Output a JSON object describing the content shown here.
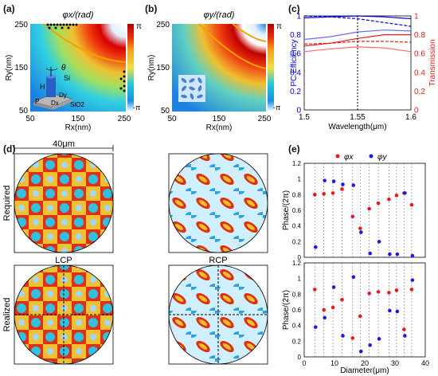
{
  "panels": {
    "a": "(a)",
    "b": "(b)",
    "c": "(c)",
    "d": "(d)",
    "e": "(e)"
  },
  "chart_data": [
    {
      "type": "heatmap",
      "panel": "(a)",
      "title": "φx/(rad)",
      "xlabel": "Rx(nm)",
      "ylabel": "Ry(nm)",
      "x_ticks": [
        "50",
        "150",
        "250"
      ],
      "y_ticks": [
        "50",
        "150",
        "250"
      ],
      "xlim": [
        50,
        250
      ],
      "ylim": [
        50,
        250
      ],
      "colorbar_ticks": [
        "π",
        "-π"
      ],
      "inset_labels": {
        "theta": "θ",
        "h": "H",
        "si": "Si",
        "dy": "Dy",
        "dx": "Dx",
        "p": "P",
        "sio2": "SiO2"
      }
    },
    {
      "type": "heatmap",
      "panel": "(b)",
      "title": "φy/(rad)",
      "xlabel": "Rx(nm)",
      "ylabel": "Ry(nm)",
      "x_ticks": [
        "50",
        "150",
        "250"
      ],
      "y_ticks": [
        "50",
        "150",
        "250"
      ],
      "xlim": [
        50,
        250
      ],
      "ylim": [
        50,
        250
      ],
      "colorbar_ticks": [
        "π",
        "-π"
      ]
    },
    {
      "type": "line",
      "panel": "(c)",
      "xlabel": "Wavelength(μm)",
      "ylabel_left": "PC Efficiency",
      "ylabel_right": "Transmission",
      "x_ticks": [
        "1.5",
        "1.55",
        "1.6"
      ],
      "y_ticks": [
        "0",
        "0.2",
        "0.4",
        "0.6",
        "0.8",
        "1"
      ],
      "xlim": [
        1.5,
        1.6
      ],
      "ylim": [
        0,
        1
      ],
      "x": [
        1.5,
        1.525,
        1.55,
        1.575,
        1.6
      ],
      "series": [
        {
          "axis": "left",
          "color": "#0000e6",
          "style": "solid",
          "values": [
            0.98,
            0.99,
            1.0,
            0.99,
            0.97
          ]
        },
        {
          "axis": "left",
          "color": "#0000e6",
          "style": "dashed",
          "values": [
            1.0,
            0.99,
            0.97,
            0.93,
            0.89
          ]
        },
        {
          "axis": "left",
          "color": "#6a6aff",
          "style": "solid",
          "values": [
            0.75,
            0.78,
            0.83,
            0.85,
            0.84
          ]
        },
        {
          "axis": "right",
          "color": "#e61b1b",
          "style": "solid",
          "values": [
            0.68,
            0.71,
            0.76,
            0.8,
            0.8
          ]
        },
        {
          "axis": "right",
          "color": "#e61b1b",
          "style": "dashed",
          "values": [
            0.7,
            0.71,
            0.73,
            0.73,
            0.72
          ]
        },
        {
          "axis": "right",
          "color": "#ff6a6a",
          "style": "solid",
          "values": [
            0.62,
            0.65,
            0.67,
            0.66,
            0.62
          ]
        }
      ],
      "vline": 1.55
    },
    {
      "type": "heatmap",
      "panel": "(d)",
      "scale_label": "40μm",
      "row_labels": [
        "Required",
        "Realized"
      ],
      "column_labels": [
        "LCP",
        "RCP"
      ]
    },
    {
      "type": "scatter",
      "panel": "(e)",
      "legend": [
        "φx",
        "φy"
      ],
      "xlabel": "Diameter(μm)",
      "ylabel": "Phase/(2π)",
      "x_ticks": [
        "0",
        "10",
        "20",
        "30",
        "40"
      ],
      "y_ticks": [
        "0",
        "0.2",
        "0.4",
        "0.6",
        "0.8",
        "1",
        "1.2"
      ],
      "xlim": [
        0,
        40
      ],
      "ylim": [
        0,
        1.2
      ],
      "top": {
        "x": [
          3.5,
          6.5,
          9.5,
          12.5,
          16,
          18.5,
          21.5,
          24.5,
          28,
          30.5,
          33,
          35.5
        ],
        "phix": [
          0.8,
          0.81,
          0.82,
          0.87,
          0.52,
          0.37,
          0.62,
          0.69,
          0.74,
          0.79,
          0.82,
          0.67
        ],
        "phiy": [
          0.13,
          0.98,
          0.97,
          0.93,
          0.92,
          0.32,
          0.05,
          0.2,
          0.04,
          0.04,
          0.82,
          0.02
        ]
      },
      "bottom": {
        "x": [
          3.5,
          6.5,
          9.5,
          12.5,
          16,
          18.5,
          21.5,
          24.5,
          28,
          30.5,
          33,
          35.5
        ],
        "phix": [
          0.86,
          0.6,
          0.63,
          0.73,
          0.24,
          0.52,
          0.81,
          0.83,
          0.82,
          0.85,
          0.35,
          0.86
        ],
        "phiy": [
          0.38,
          0.5,
          0.89,
          0.27,
          1.02,
          0.07,
          0.15,
          0.23,
          0.59,
          0.58,
          0.27,
          0.98
        ]
      }
    }
  ]
}
